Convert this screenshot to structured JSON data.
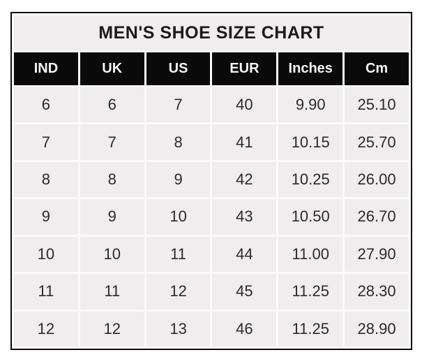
{
  "chart_data": {
    "type": "table",
    "title": "MEN'S SHOE SIZE CHART",
    "columns": [
      "IND",
      "UK",
      "US",
      "EUR",
      "Inches",
      "Cm"
    ],
    "rows": [
      [
        "6",
        "6",
        "7",
        "40",
        "9.90",
        "25.10"
      ],
      [
        "7",
        "7",
        "8",
        "41",
        "10.15",
        "25.70"
      ],
      [
        "8",
        "8",
        "9",
        "42",
        "10.25",
        "26.00"
      ],
      [
        "9",
        "9",
        "10",
        "43",
        "10.50",
        "26.70"
      ],
      [
        "10",
        "10",
        "11",
        "44",
        "11.00",
        "27.90"
      ],
      [
        "11",
        "11",
        "12",
        "45",
        "11.25",
        "28.30"
      ],
      [
        "12",
        "12",
        "13",
        "46",
        "11.25",
        "28.90"
      ]
    ]
  },
  "colors": {
    "header_bg": "#0a0a0a",
    "header_text": "#f5f5f5",
    "cell_bg": "#efedee",
    "title_bg": "#efedee",
    "outer_border": "#0c0c0c",
    "gutter": "#fafaf9",
    "page_bg": "#ffffff"
  }
}
